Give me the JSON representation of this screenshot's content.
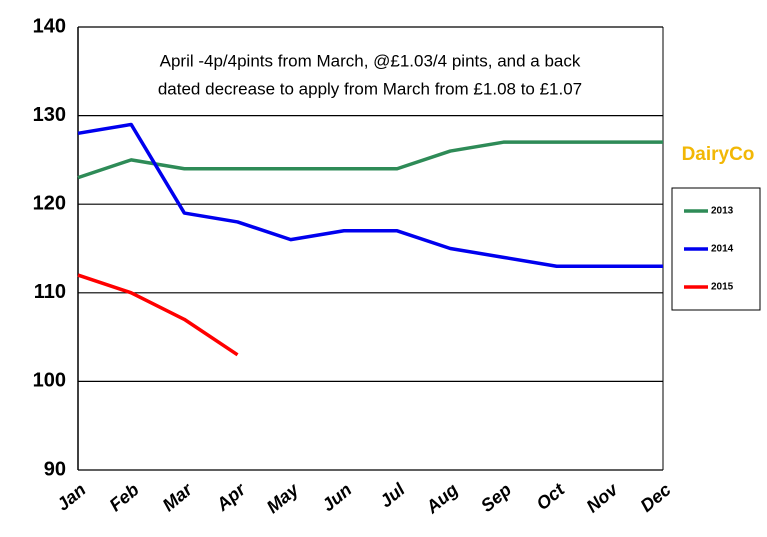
{
  "chart_data": {
    "type": "line",
    "annotation": [
      "April -4p/4pints from March, @£1.03/4 pints, and a back",
      "dated decrease to apply from March from £1.08 to £1.07"
    ],
    "logo": "DairyCo",
    "categories": [
      "Jan",
      "Feb",
      "Mar",
      "Apr",
      "May",
      "Jun",
      "Jul",
      "Aug",
      "Sep",
      "Oct",
      "Nov",
      "Dec"
    ],
    "series": [
      {
        "name": "2013",
        "color": "#2e8b57",
        "values": [
          123,
          125,
          124,
          124,
          124,
          124,
          124,
          126,
          127,
          127,
          127,
          127
        ]
      },
      {
        "name": "2014",
        "color": "#0000ee",
        "values": [
          128,
          129,
          119,
          118,
          116,
          117,
          117,
          115,
          114,
          113,
          113,
          113
        ]
      },
      {
        "name": "2015",
        "color": "#ff0000",
        "values": [
          112,
          110,
          107,
          103,
          null,
          null,
          null,
          null,
          null,
          null,
          null,
          null
        ]
      }
    ],
    "ylim": [
      90,
      140
    ],
    "yticks": [
      90,
      100,
      110,
      120,
      130,
      140
    ],
    "grid": true
  }
}
